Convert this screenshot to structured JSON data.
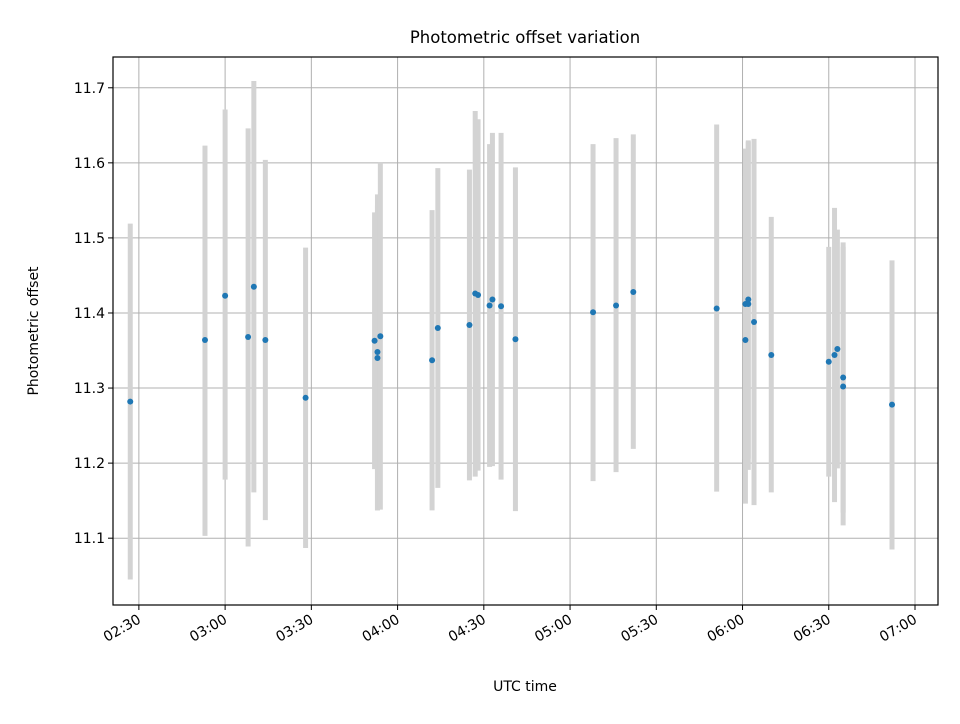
{
  "chart_data": {
    "type": "scatter",
    "title": "Photometric offset variation",
    "xlabel": "UTC time",
    "ylabel": "Photometric offset",
    "x_unit": "UTC time (HH:MM)",
    "xlim": [
      "02:21",
      "07:08"
    ],
    "ylim": [
      11.011,
      11.741
    ],
    "x_ticks": [
      "02:30",
      "03:00",
      "03:30",
      "04:00",
      "04:30",
      "05:00",
      "05:30",
      "06:00",
      "06:30",
      "07:00"
    ],
    "y_ticks": [
      11.1,
      11.2,
      11.3,
      11.4,
      11.5,
      11.6,
      11.7
    ],
    "y_tick_labels": [
      "11.1",
      "11.2",
      "11.3",
      "11.4",
      "11.5",
      "11.6",
      "11.7"
    ],
    "grid": true,
    "colors": {
      "points": "#1f77b4",
      "errorbars": "#d3d3d3",
      "grid": "#b0b0b0"
    },
    "points": [
      {
        "t": "02:27",
        "y": 11.282,
        "lo": 11.045,
        "hi": 11.519
      },
      {
        "t": "02:53",
        "y": 11.364,
        "lo": 11.103,
        "hi": 11.623
      },
      {
        "t": "03:00",
        "y": 11.423,
        "lo": 11.178,
        "hi": 11.671
      },
      {
        "t": "03:08",
        "y": 11.368,
        "lo": 11.089,
        "hi": 11.646
      },
      {
        "t": "03:10",
        "y": 11.435,
        "lo": 11.161,
        "hi": 11.709
      },
      {
        "t": "03:14",
        "y": 11.364,
        "lo": 11.124,
        "hi": 11.604
      },
      {
        "t": "03:28",
        "y": 11.287,
        "lo": 11.087,
        "hi": 11.487
      },
      {
        "t": "03:52",
        "y": 11.363,
        "lo": 11.192,
        "hi": 11.534
      },
      {
        "t": "03:53",
        "y": 11.34,
        "lo": 11.137,
        "hi": 11.543
      },
      {
        "t": "03:53",
        "y": 11.348,
        "lo": 11.137,
        "hi": 11.558
      },
      {
        "t": "03:54",
        "y": 11.369,
        "lo": 11.138,
        "hi": 11.6
      },
      {
        "t": "04:12",
        "y": 11.337,
        "lo": 11.137,
        "hi": 11.537
      },
      {
        "t": "04:14",
        "y": 11.38,
        "lo": 11.167,
        "hi": 11.593
      },
      {
        "t": "04:25",
        "y": 11.384,
        "lo": 11.177,
        "hi": 11.591
      },
      {
        "t": "04:27",
        "y": 11.426,
        "lo": 11.182,
        "hi": 11.669
      },
      {
        "t": "04:28",
        "y": 11.424,
        "lo": 11.19,
        "hi": 11.658
      },
      {
        "t": "04:32",
        "y": 11.41,
        "lo": 11.195,
        "hi": 11.625
      },
      {
        "t": "04:33",
        "y": 11.418,
        "lo": 11.196,
        "hi": 11.64
      },
      {
        "t": "04:36",
        "y": 11.409,
        "lo": 11.178,
        "hi": 11.64
      },
      {
        "t": "04:41",
        "y": 11.365,
        "lo": 11.136,
        "hi": 11.594
      },
      {
        "t": "05:08",
        "y": 11.401,
        "lo": 11.176,
        "hi": 11.625
      },
      {
        "t": "05:16",
        "y": 11.41,
        "lo": 11.188,
        "hi": 11.633
      },
      {
        "t": "05:22",
        "y": 11.428,
        "lo": 11.219,
        "hi": 11.638
      },
      {
        "t": "05:51",
        "y": 11.406,
        "lo": 11.162,
        "hi": 11.651
      },
      {
        "t": "06:01",
        "y": 11.364,
        "lo": 11.146,
        "hi": 11.583
      },
      {
        "t": "06:01",
        "y": 11.412,
        "lo": 11.205,
        "hi": 11.619
      },
      {
        "t": "06:02",
        "y": 11.418,
        "lo": 11.206,
        "hi": 11.63
      },
      {
        "t": "06:02",
        "y": 11.412,
        "lo": 11.191,
        "hi": 11.628
      },
      {
        "t": "06:04",
        "y": 11.388,
        "lo": 11.144,
        "hi": 11.632
      },
      {
        "t": "06:10",
        "y": 11.344,
        "lo": 11.161,
        "hi": 11.528
      },
      {
        "t": "06:30",
        "y": 11.335,
        "lo": 11.182,
        "hi": 11.488
      },
      {
        "t": "06:32",
        "y": 11.344,
        "lo": 11.148,
        "hi": 11.54
      },
      {
        "t": "06:33",
        "y": 11.352,
        "lo": 11.193,
        "hi": 11.511
      },
      {
        "t": "06:35",
        "y": 11.302,
        "lo": 11.117,
        "hi": 11.488
      },
      {
        "t": "06:35",
        "y": 11.314,
        "lo": 11.134,
        "hi": 11.494
      },
      {
        "t": "06:52",
        "y": 11.278,
        "lo": 11.085,
        "hi": 11.47
      }
    ]
  }
}
